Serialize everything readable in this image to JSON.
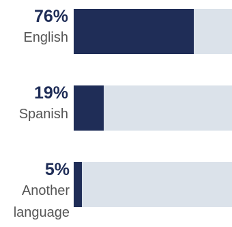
{
  "chart_data": {
    "type": "bar",
    "orientation": "horizontal",
    "categories": [
      "English",
      "Spanish",
      "Another language"
    ],
    "values": [
      76,
      19,
      5
    ],
    "value_labels": [
      "76%",
      "19%",
      "5%"
    ],
    "xlim": [
      0,
      100
    ],
    "grid": false,
    "colors": {
      "fill": "#1f2d57",
      "track": "#dbe2ea",
      "value_text": "#1f2d57",
      "category_text": "#555555"
    }
  },
  "rows": [
    {
      "value_label": "76%",
      "category": "English"
    },
    {
      "value_label": "19%",
      "category": "Spanish"
    },
    {
      "value_label": "5%",
      "category": "Another language"
    }
  ]
}
